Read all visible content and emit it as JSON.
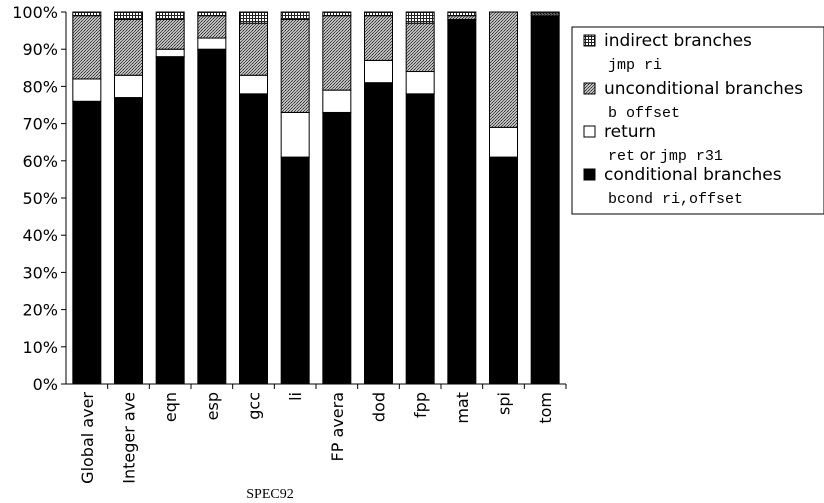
{
  "chart_data": {
    "type": "bar",
    "stacked": true,
    "title": "",
    "xlabel": "SPEC92",
    "ylabel": "",
    "ylim": [
      0,
      100
    ],
    "y_ticks": [
      "0%",
      "10%",
      "20%",
      "30%",
      "40%",
      "50%",
      "60%",
      "70%",
      "80%",
      "90%",
      "100%"
    ],
    "categories": [
      "Global aver",
      "Integer ave",
      "eqn",
      "esp",
      "gcc",
      "li",
      "FP avera",
      "dod",
      "fpp",
      "mat",
      "spi",
      "tom"
    ],
    "series": [
      {
        "name": "conditional branches",
        "colour": "#000000",
        "pattern": "solid",
        "values": [
          76,
          77,
          88,
          90,
          78,
          61,
          73,
          81,
          78,
          98,
          61,
          99
        ]
      },
      {
        "name": "return",
        "colour": "#ffffff",
        "pattern": "white",
        "values": [
          6,
          6,
          2,
          3,
          5,
          12,
          6,
          6,
          6,
          0,
          8,
          0
        ]
      },
      {
        "name": "unconditional branches",
        "colour": "#888888",
        "pattern": "dots",
        "values": [
          17,
          15,
          8,
          6,
          14,
          25,
          20,
          12,
          13,
          1,
          31,
          0.5
        ]
      },
      {
        "name": "indirect branches",
        "colour": "#444444",
        "pattern": "grid",
        "values": [
          1,
          2,
          2,
          1,
          3,
          2,
          1,
          1,
          3,
          1,
          0,
          0.5
        ]
      }
    ],
    "legend": {
      "placement": "right",
      "entries": [
        {
          "label": "indirect branches",
          "pattern": "grid",
          "sub": "jmp ri"
        },
        {
          "label": "unconditional branches",
          "pattern": "dots",
          "sub": "b offset"
        },
        {
          "label": "return",
          "pattern": "white",
          "sub_parts": [
            "ret",
            " or ",
            "jmp r31"
          ]
        },
        {
          "label": "conditional branches",
          "pattern": "solid",
          "sub": "bcond ri,offset"
        }
      ]
    },
    "grid": false
  }
}
